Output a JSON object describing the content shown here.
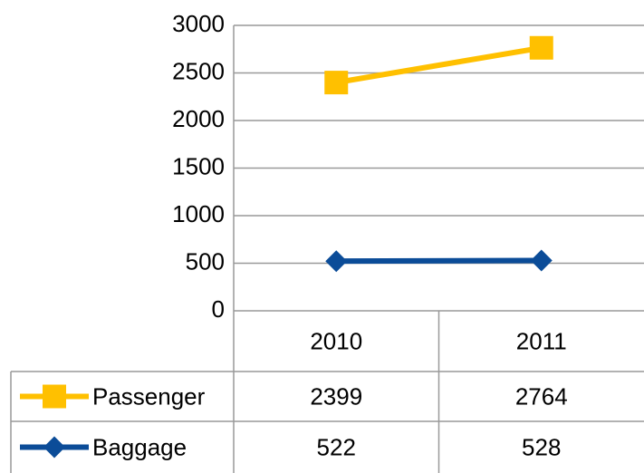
{
  "chart_data": {
    "type": "line",
    "categories": [
      "2010",
      "2011"
    ],
    "series": [
      {
        "name": "Passenger",
        "color": "#FFC000",
        "marker": "square",
        "values": [
          2399,
          2764
        ]
      },
      {
        "name": "Baggage",
        "color": "#0B4C98",
        "marker": "diamond",
        "values": [
          522,
          528
        ]
      }
    ],
    "ylim": [
      0,
      3000
    ],
    "yticks": [
      0,
      500,
      1000,
      1500,
      2000,
      2500,
      3000
    ],
    "grid": true,
    "data_table": true
  }
}
